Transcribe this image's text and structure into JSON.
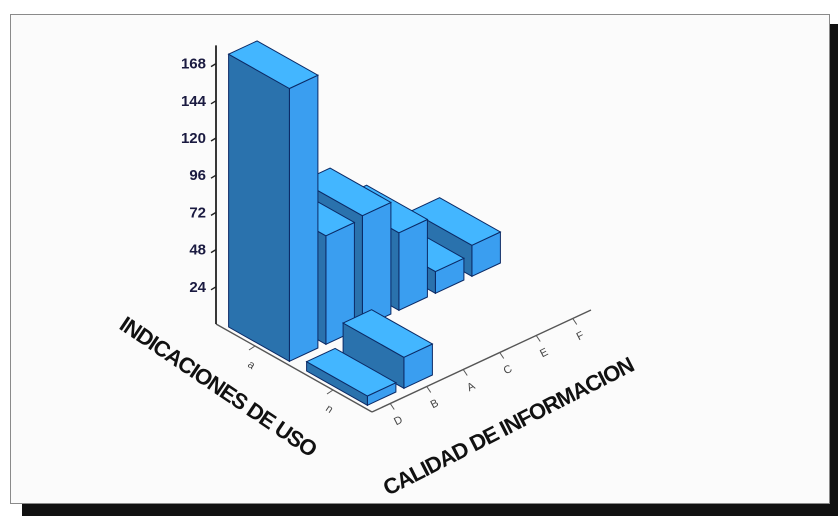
{
  "chart_data": {
    "type": "bar",
    "title": "",
    "xlabel": "CALIDAD DE INFORMACION",
    "ylabel": "INDICACIONES DE USO",
    "zlabel": "",
    "x_categories": [
      "D",
      "B",
      "A",
      "C",
      "E",
      "F"
    ],
    "y_categories": [
      "n",
      "a"
    ],
    "z_ticks": [
      "168",
      "144",
      "120",
      "96",
      "72",
      "48",
      "24"
    ],
    "zlim": [
      0,
      168
    ],
    "series": [
      {
        "name": "",
        "category": "n",
        "values": [
          6,
          20,
          0,
          0,
          0,
          0
        ]
      },
      {
        "name": "",
        "category": "a",
        "values": [
          176,
          70,
          72,
          50,
          14,
          20
        ]
      }
    ],
    "bar_color": "#3a9ef0"
  }
}
